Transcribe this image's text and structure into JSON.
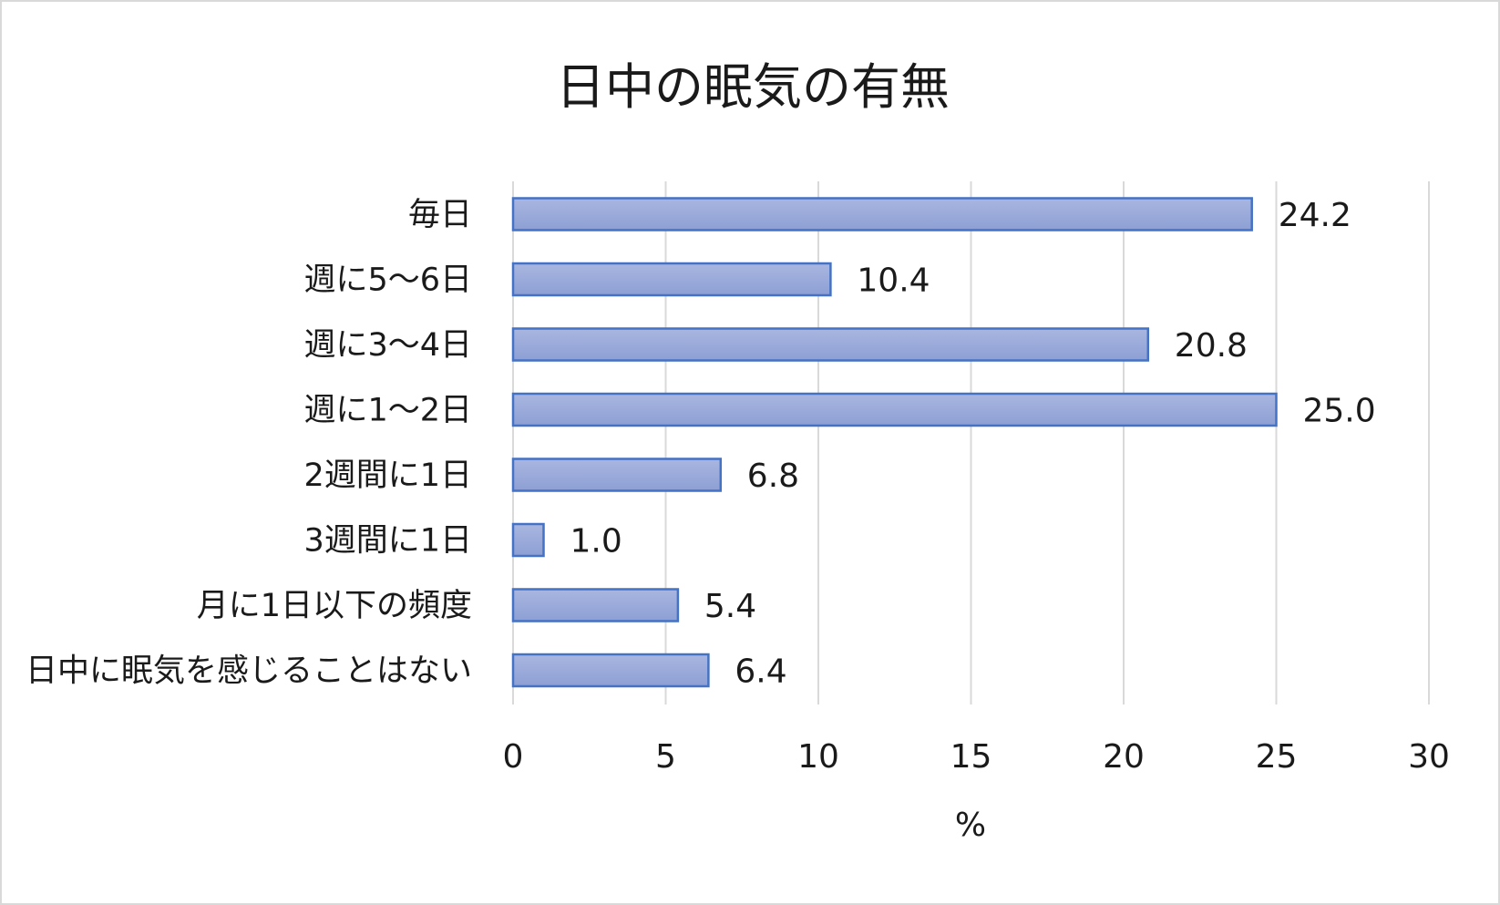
{
  "chart_data": {
    "type": "bar",
    "orientation": "horizontal",
    "title": "日中の眠気の有無",
    "categories": [
      "毎日",
      "週に5～6日",
      "週に3～4日",
      "週に1～2日",
      "2週間に1日",
      "3週間に1日",
      "月に1日以下の頻度",
      "日中に眠気を感じることはない"
    ],
    "values": [
      24.2,
      10.4,
      20.8,
      25.0,
      6.8,
      1.0,
      5.4,
      6.4
    ],
    "value_labels": [
      "24.2",
      "10.4",
      "20.8",
      "25.0",
      "6.8",
      "1.0",
      "5.4",
      "6.4"
    ],
    "xlabel": "%",
    "ylabel": "",
    "xlim": [
      0,
      30
    ],
    "xticks": [
      0,
      5,
      10,
      15,
      20,
      25,
      30
    ],
    "xtick_labels": [
      "0",
      "5",
      "10",
      "15",
      "20",
      "25",
      "30"
    ],
    "grid": true,
    "legend": "none",
    "colors": {
      "bar_fill_top": "#a9b6e0",
      "bar_fill_bottom": "#8d9fd4",
      "bar_border": "#4472c4",
      "gridline": "#d9d9d9",
      "text": "#1a1a1a"
    }
  }
}
